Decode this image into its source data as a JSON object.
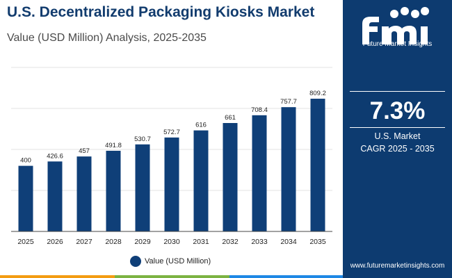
{
  "header": {
    "title": "U.S. Decentralized Packaging Kiosks Market",
    "subtitle": "Value (USD Million) Analysis, 2025-2035"
  },
  "chart_data": {
    "type": "bar",
    "categories": [
      "2025",
      "2026",
      "2027",
      "2028",
      "2029",
      "2030",
      "2031",
      "2032",
      "2033",
      "2034",
      "2035"
    ],
    "series": [
      {
        "name": "Value (USD Million)",
        "values": [
          400,
          426.6,
          457,
          491.8,
          530.7,
          572.7,
          616,
          661,
          708.4,
          757.7,
          809.2
        ]
      }
    ],
    "value_labels": [
      "400",
      "426.6",
      "457",
      "491.8",
      "530.7",
      "572.7",
      "616",
      "661",
      "708.4",
      "757.7",
      "809.2"
    ],
    "title": "U.S. Decentralized Packaging Kiosks Market",
    "subtitle": "Value (USD Million) Analysis, 2025-2035",
    "xlabel": "",
    "ylabel": "",
    "ylim": [
      0,
      1000
    ],
    "grid": true,
    "legend": "bottom-center",
    "bar_color": "#0f3f78"
  },
  "legend": {
    "label": "Value (USD Million)",
    "color": "#0f3f78"
  },
  "sidebar": {
    "logo_text": "Future Market Insights",
    "cagr_value": "7.3%",
    "cagr_label_line1": "U.S. Market",
    "cagr_label_line2": "CAGR 2025 - 2035",
    "website": "www.futuremarketinsights.com",
    "background": "#0d3b70"
  },
  "stripes": [
    "#f39c12",
    "#7cb342",
    "#1e88e5",
    "#8e24aa"
  ]
}
